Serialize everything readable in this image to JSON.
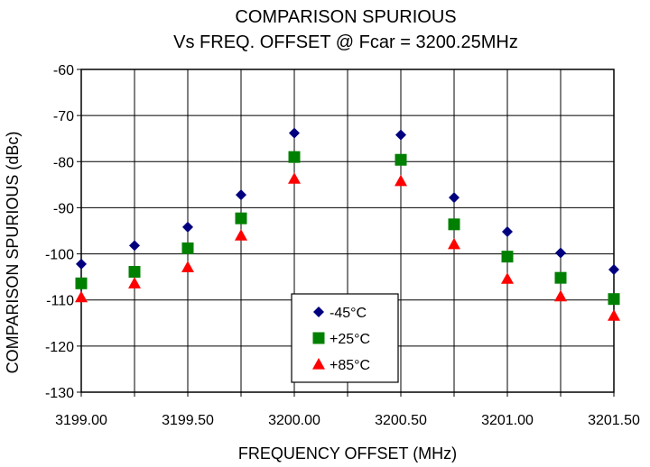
{
  "chart_data": {
    "type": "scatter",
    "title": "COMPARISON SPURIOUS",
    "subtitle": "Vs FREQ. OFFSET @ Fcar = 3200.25MHz",
    "xlabel": "FREQUENCY OFFSET (MHz)",
    "ylabel": "COMPARISON SPURIOUS (dBc)",
    "xlim": [
      3199.0,
      3201.5
    ],
    "ylim": [
      -130,
      -60
    ],
    "x_ticks": [
      3199.0,
      3199.25,
      3199.5,
      3199.75,
      3200.0,
      3200.25,
      3200.5,
      3200.75,
      3201.0,
      3201.25,
      3201.5
    ],
    "x_tick_labels": [
      "3199.00",
      "",
      "3199.50",
      "",
      "3200.00",
      "",
      "3200.50",
      "",
      "3201.00",
      "",
      "3201.50"
    ],
    "y_ticks": [
      -130,
      -120,
      -110,
      -100,
      -90,
      -80,
      -70,
      -60
    ],
    "y_tick_labels": [
      "-130",
      "-120",
      "-110",
      "-100",
      "-90",
      "-80",
      "-70",
      "-60"
    ],
    "grid": true,
    "legend_position": "bottom-center",
    "series": [
      {
        "name": "-45°C",
        "marker": "diamond",
        "color": "#00007f",
        "x": [
          3199.0,
          3199.25,
          3199.5,
          3199.75,
          3200.0,
          3200.5,
          3200.75,
          3201.0,
          3201.25,
          3201.5
        ],
        "y": [
          -102.2,
          -98.2,
          -94.2,
          -87.2,
          -73.8,
          -74.2,
          -87.8,
          -95.2,
          -99.8,
          -103.4
        ]
      },
      {
        "name": "+25°C",
        "marker": "square",
        "color": "#008000",
        "x": [
          3199.0,
          3199.25,
          3199.5,
          3199.75,
          3200.0,
          3200.5,
          3200.75,
          3201.0,
          3201.25,
          3201.5
        ],
        "y": [
          -106.4,
          -103.9,
          -98.8,
          -92.3,
          -79.0,
          -79.6,
          -93.6,
          -100.6,
          -105.2,
          -109.8
        ]
      },
      {
        "name": "+85°C",
        "marker": "triangle",
        "color": "#ff0000",
        "x": [
          3199.0,
          3199.25,
          3199.5,
          3199.75,
          3200.0,
          3200.5,
          3200.75,
          3201.0,
          3201.25,
          3201.5
        ],
        "y": [
          -109.4,
          -106.4,
          -102.9,
          -96.0,
          -83.7,
          -84.2,
          -97.9,
          -105.4,
          -109.2,
          -113.4
        ]
      }
    ]
  }
}
